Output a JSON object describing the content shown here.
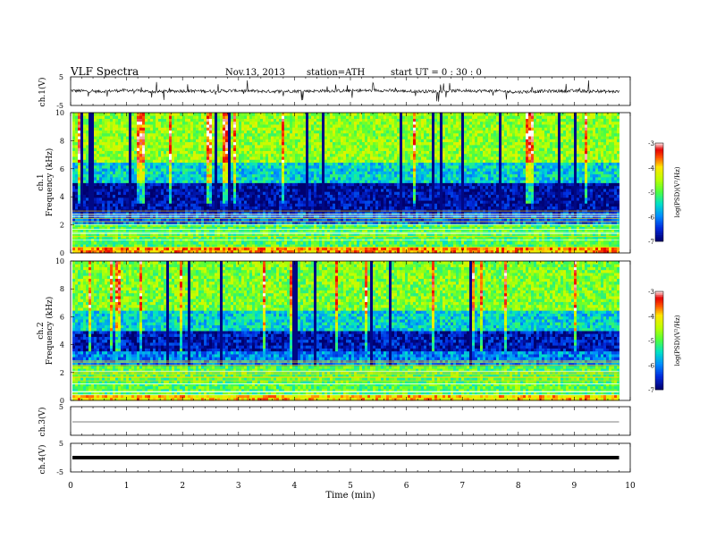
{
  "header": {
    "title": "VLF  Spectra",
    "date": "Nov.13, 2013",
    "station": "station=ATH",
    "start": "start  UT =   0 : 30 : 0"
  },
  "chart_data": [
    {
      "type": "line",
      "ylabel": "ch.1(V)",
      "ylim": [
        -5,
        5
      ],
      "yticks": [
        "5",
        "-5"
      ],
      "x": [
        0,
        0.5,
        1,
        1.5,
        2,
        2.5,
        3,
        3.5,
        4,
        4.5,
        5,
        5.5,
        6,
        6.5,
        7,
        7.5,
        8,
        8.5,
        9,
        9.5,
        9.8
      ],
      "values": [
        0.2,
        -0.1,
        0.3,
        -0.2,
        0.1,
        0.0,
        0.2,
        -0.1,
        0.0,
        0.1,
        0.1,
        0.3,
        0.0,
        -0.1,
        0.2,
        0.1,
        -0.3,
        0.0,
        0.1,
        -0.1,
        -0.2
      ],
      "style": "noisy waveform with frequent spikes to about ±4 V"
    },
    {
      "type": "heatmap",
      "ylabel": "ch.1",
      "ylabel2": "Frequency  (kHz)",
      "yticks": [
        "0",
        "2",
        "4",
        "6",
        "8",
        "10"
      ],
      "ylim": [
        0,
        10
      ],
      "colorbar": {
        "label": "log(PSD)(V²/Hz)",
        "ticks": [
          "-3",
          "-4",
          "-5",
          "-6",
          "-7"
        ],
        "range": [
          -7,
          -3
        ]
      },
      "psd_bands": [
        {
          "f": [
            0,
            0.5
          ],
          "log_psd": -3.8
        },
        {
          "f": [
            0.5,
            2.0
          ],
          "log_psd": -5.0
        },
        {
          "f": [
            2.0,
            3.0
          ],
          "log_psd": -6.2
        },
        {
          "f": [
            3.0,
            5.0
          ],
          "log_psd": -6.8
        },
        {
          "f": [
            5.0,
            6.5
          ],
          "log_psd": -5.6
        },
        {
          "f": [
            6.5,
            10.0
          ],
          "log_psd": -4.7
        }
      ]
    },
    {
      "type": "heatmap",
      "ylabel": "ch.2",
      "ylabel2": "Frequency  (kHz)",
      "yticks": [
        "0",
        "2",
        "4",
        "6",
        "8",
        "10"
      ],
      "ylim": [
        0,
        10
      ],
      "colorbar": {
        "label": "log(PSD)(V²/Hz)",
        "ticks": [
          "-3",
          "-4",
          "-5",
          "-6",
          "-7"
        ],
        "range": [
          -7,
          -3
        ]
      },
      "psd_bands": [
        {
          "f": [
            0,
            0.5
          ],
          "log_psd": -4.0
        },
        {
          "f": [
            0.5,
            2.5
          ],
          "log_psd": -5.0
        },
        {
          "f": [
            2.5,
            3.5
          ],
          "log_psd": -6.0
        },
        {
          "f": [
            3.5,
            5.0
          ],
          "log_psd": -6.7
        },
        {
          "f": [
            5.0,
            6.5
          ],
          "log_psd": -5.6
        },
        {
          "f": [
            6.5,
            10.0
          ],
          "log_psd": -4.8
        }
      ]
    },
    {
      "type": "line",
      "ylabel": "ch.3(V)",
      "ylim": [
        -5,
        5
      ],
      "yticks": [
        "5"
      ],
      "x": [
        0,
        9.8
      ],
      "values": [
        0,
        0
      ],
      "style": "flat line"
    },
    {
      "type": "line",
      "ylabel": "ch.4(V)",
      "ylim": [
        -5,
        5
      ],
      "yticks": [
        "5",
        "-5"
      ],
      "x": [
        0,
        9.8
      ],
      "values": [
        0,
        0
      ],
      "style": "thick flat line"
    }
  ],
  "xaxis": {
    "label": "Time  (min)",
    "ticks": [
      "0",
      "1",
      "2",
      "3",
      "4",
      "5",
      "6",
      "7",
      "8",
      "9",
      "10"
    ],
    "range": [
      0,
      10
    ]
  },
  "colors": {
    "spectrum_low": "#00007a",
    "spectrum_mid_low": "#0066ff",
    "spectrum_mid": "#00e0b0",
    "spectrum_mid_high": "#7fff00",
    "spectrum_high": "#ffee00",
    "spectrum_max": "#ff1a1a"
  }
}
